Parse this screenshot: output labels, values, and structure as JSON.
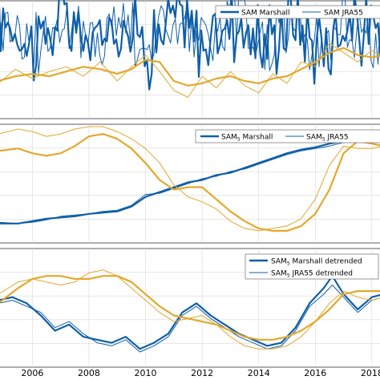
{
  "colors": {
    "blue": "#0f5fa8",
    "gold": "#e3a82d",
    "axis": "#333333",
    "grid": "#d9d9d9"
  },
  "chart_data": [
    {
      "type": "line",
      "grid": true,
      "legend_placement": "top-right",
      "x_range": [
        2004.8,
        2018.4
      ],
      "series": [
        {
          "name": "SAM Marshall",
          "color": "#0f5fa8",
          "style": "thick"
        },
        {
          "name": "SAM JRA55",
          "color": "#0f5fa8",
          "style": "thin"
        },
        {
          "color": "#e3a82d",
          "style": "thick",
          "x": [
            2004.8,
            2005.4,
            2006.0,
            2006.6,
            2007.2,
            2007.8,
            2008.4,
            2009.0,
            2009.5,
            2010.0,
            2010.5,
            2011.0,
            2011.5,
            2012.0,
            2012.5,
            2013.0,
            2013.5,
            2014.0,
            2014.5,
            2015.0,
            2015.5,
            2016.0,
            2016.5,
            2017.0,
            2017.5,
            2018.0,
            2018.4
          ],
          "y": [
            -0.8,
            -0.6,
            -0.5,
            -0.6,
            -0.4,
            -0.2,
            -0.3,
            -0.5,
            -0.3,
            0.1,
            0.0,
            -0.8,
            -1.0,
            -0.9,
            -0.7,
            -0.6,
            -0.8,
            -0.9,
            -0.7,
            -0.6,
            -0.3,
            0.0,
            0.4,
            0.6,
            0.3,
            0.2,
            0.3
          ]
        },
        {
          "color": "#e3a82d",
          "style": "thin",
          "x": [
            2004.8,
            2005.4,
            2006.0,
            2006.6,
            2007.2,
            2007.8,
            2008.4,
            2009.0,
            2009.5,
            2010.0,
            2010.5,
            2011.0,
            2011.5,
            2012.0,
            2012.5,
            2013.0,
            2013.5,
            2014.0,
            2014.5,
            2015.0,
            2015.5,
            2016.0,
            2016.5,
            2017.0,
            2017.5,
            2018.0,
            2018.4
          ],
          "y": [
            -0.9,
            -0.3,
            -0.7,
            -0.4,
            -0.2,
            -0.6,
            0.0,
            -0.8,
            -0.2,
            0.3,
            -0.4,
            -1.2,
            -1.5,
            -0.6,
            -1.1,
            -0.4,
            -1.0,
            -1.3,
            -0.5,
            -0.9,
            0.0,
            -0.2,
            0.8,
            0.4,
            0.0,
            0.5,
            0.2
          ]
        }
      ]
    },
    {
      "type": "line",
      "grid": true,
      "legend_placement": "top-right",
      "x_range": [
        2004.8,
        2018.4
      ],
      "series": [
        {
          "name": "SAM_5 Marshall",
          "color": "#0f5fa8",
          "style": "thick",
          "x": [
            2004.8,
            2005.5,
            2006.0,
            2006.5,
            2007.0,
            2007.5,
            2008.0,
            2008.5,
            2009.0,
            2009.5,
            2010.0,
            2010.5,
            2011.0,
            2011.5,
            2012.0,
            2012.5,
            2013.0,
            2013.5,
            2014.0,
            2014.5,
            2015.0,
            2015.5,
            2016.0,
            2016.5,
            2017.0,
            2017.5,
            2018.0,
            2018.4
          ],
          "y": [
            -2.2,
            -2.2,
            -2.1,
            -2.0,
            -1.95,
            -1.9,
            -1.8,
            -1.75,
            -1.7,
            -1.5,
            -1.1,
            -0.9,
            -0.7,
            -0.5,
            -0.4,
            -0.2,
            -0.1,
            0.1,
            0.3,
            0.5,
            0.7,
            0.85,
            0.95,
            1.1,
            1.2,
            1.25,
            1.3,
            1.35
          ]
        },
        {
          "name": "SAM_5 JRA55",
          "color": "#0f5fa8",
          "style": "thin",
          "x": [
            2004.8,
            2005.5,
            2006.0,
            2006.5,
            2007.0,
            2007.5,
            2008.0,
            2008.5,
            2009.0,
            2009.5,
            2010.0,
            2010.5,
            2011.0,
            2011.5,
            2012.0,
            2012.5,
            2013.0,
            2013.5,
            2014.0,
            2014.5,
            2015.0,
            2015.5,
            2016.0,
            2016.5,
            2017.0,
            2017.5,
            2018.0,
            2018.4
          ],
          "y": [
            -2.15,
            -2.2,
            -2.15,
            -2.05,
            -1.9,
            -1.85,
            -1.8,
            -1.7,
            -1.65,
            -1.45,
            -1.0,
            -0.95,
            -0.75,
            -0.55,
            -0.35,
            -0.25,
            -0.05,
            0.05,
            0.25,
            0.45,
            0.65,
            0.8,
            0.9,
            1.0,
            1.15,
            1.2,
            1.3,
            1.3
          ]
        },
        {
          "color": "#e3a82d",
          "style": "thick",
          "x": [
            2004.8,
            2005.5,
            2006.0,
            2006.5,
            2007.0,
            2007.5,
            2008.0,
            2008.5,
            2009.0,
            2009.5,
            2010.0,
            2010.5,
            2011.0,
            2011.5,
            2012.0,
            2012.5,
            2013.0,
            2013.5,
            2014.0,
            2014.5,
            2015.0,
            2015.5,
            2016.0,
            2016.5,
            2017.0,
            2017.5,
            2018.0,
            2018.4
          ],
          "y": [
            0.8,
            0.9,
            0.7,
            0.6,
            0.7,
            1.0,
            1.4,
            1.5,
            1.3,
            0.9,
            0.3,
            -0.4,
            -0.8,
            -0.7,
            -0.7,
            -1.2,
            -1.7,
            -2.1,
            -2.4,
            -2.5,
            -2.5,
            -2.3,
            -1.8,
            -0.8,
            0.7,
            1.2,
            1.1,
            1.0
          ]
        },
        {
          "color": "#e3a82d",
          "style": "thin",
          "x": [
            2004.8,
            2005.5,
            2006.0,
            2006.5,
            2007.0,
            2007.5,
            2008.0,
            2008.5,
            2009.0,
            2009.5,
            2010.0,
            2010.5,
            2011.0,
            2011.5,
            2012.0,
            2012.5,
            2013.0,
            2013.5,
            2014.0,
            2014.5,
            2015.0,
            2015.5,
            2016.0,
            2016.5,
            2017.0,
            2017.5,
            2018.0,
            2018.4
          ],
          "y": [
            1.5,
            1.7,
            1.6,
            1.4,
            1.5,
            1.7,
            1.8,
            1.8,
            1.6,
            1.3,
            0.9,
            0.3,
            -0.6,
            -1.1,
            -1.3,
            -1.6,
            -2.1,
            -2.4,
            -2.5,
            -2.4,
            -2.3,
            -2.0,
            -1.2,
            0.2,
            1.0,
            0.9,
            0.9,
            1.0
          ]
        }
      ]
    },
    {
      "type": "line",
      "grid": true,
      "legend_placement": "top-right",
      "x_range": [
        2004.8,
        2018.4
      ],
      "x_ticks": [
        "2006",
        "2008",
        "2010",
        "2012",
        "2014",
        "2016",
        "2018"
      ],
      "series": [
        {
          "name": "SAM_5 Marshall detrended",
          "color": "#0f5fa8",
          "style": "thick",
          "x": [
            2004.8,
            2005.3,
            2005.8,
            2006.3,
            2006.8,
            2007.3,
            2007.8,
            2008.3,
            2008.8,
            2009.3,
            2009.8,
            2010.3,
            2010.8,
            2011.3,
            2011.8,
            2012.3,
            2012.8,
            2013.3,
            2013.8,
            2014.3,
            2014.8,
            2015.3,
            2015.8,
            2016.3,
            2016.6,
            2017.0,
            2017.5,
            2018.0,
            2018.4
          ],
          "y": [
            0.2,
            0.3,
            0.1,
            -0.3,
            -0.8,
            -0.6,
            -1.0,
            -1.1,
            -1.2,
            -1.0,
            -1.4,
            -1.2,
            -0.9,
            -0.2,
            0.1,
            -0.3,
            -0.6,
            -0.9,
            -1.1,
            -1.3,
            -1.2,
            -0.7,
            0.1,
            0.6,
            1.0,
            0.4,
            -0.1,
            0.3,
            0.4
          ]
        },
        {
          "name": "SAM_5 JRA55 detrended",
          "color": "#0f5fa8",
          "style": "thin",
          "x": [
            2004.8,
            2005.3,
            2005.8,
            2006.3,
            2006.8,
            2007.3,
            2007.8,
            2008.3,
            2008.8,
            2009.3,
            2009.8,
            2010.3,
            2010.8,
            2011.3,
            2011.8,
            2012.3,
            2012.8,
            2013.3,
            2013.8,
            2014.3,
            2014.8,
            2015.3,
            2015.8,
            2016.3,
            2016.6,
            2017.0,
            2017.5,
            2018.0,
            2018.4
          ],
          "y": [
            0.1,
            0.2,
            0.0,
            -0.2,
            -0.7,
            -0.5,
            -0.9,
            -1.2,
            -1.3,
            -1.1,
            -1.5,
            -1.3,
            -1.0,
            -0.3,
            0.0,
            -0.4,
            -0.7,
            -1.0,
            -1.2,
            -1.4,
            -1.3,
            -0.8,
            0.0,
            0.4,
            0.7,
            0.3,
            -0.2,
            0.2,
            0.3
          ]
        },
        {
          "color": "#e3a82d",
          "style": "thick",
          "x": [
            2004.8,
            2005.5,
            2006.0,
            2006.5,
            2007.0,
            2007.5,
            2008.0,
            2008.5,
            2009.0,
            2009.5,
            2010.0,
            2010.5,
            2011.0,
            2011.5,
            2012.0,
            2012.5,
            2013.0,
            2013.5,
            2014.0,
            2014.5,
            2015.0,
            2015.5,
            2016.0,
            2016.5,
            2017.0,
            2017.5,
            2018.0,
            2018.4
          ],
          "y": [
            0.1,
            0.6,
            0.9,
            1.0,
            1.0,
            0.9,
            0.9,
            1.0,
            1.0,
            0.8,
            0.4,
            0.0,
            -0.3,
            -0.4,
            -0.5,
            -0.6,
            -0.8,
            -1.0,
            -1.1,
            -1.1,
            -1.0,
            -0.8,
            -0.5,
            -0.1,
            0.4,
            0.5,
            0.5,
            0.5
          ]
        },
        {
          "color": "#e3a82d",
          "style": "thin",
          "x": [
            2004.8,
            2005.5,
            2006.0,
            2006.5,
            2007.0,
            2007.5,
            2008.0,
            2008.5,
            2009.0,
            2009.5,
            2010.0,
            2010.5,
            2011.0,
            2011.5,
            2012.0,
            2012.5,
            2013.0,
            2013.5,
            2014.0,
            2014.5,
            2015.0,
            2015.5,
            2016.0,
            2016.5,
            2017.0,
            2017.5,
            2018.0,
            2018.4
          ],
          "y": [
            0.4,
            0.8,
            0.9,
            0.8,
            0.7,
            0.8,
            1.1,
            1.2,
            1.0,
            0.6,
            0.2,
            -0.2,
            -0.5,
            -0.4,
            -0.3,
            -0.6,
            -1.0,
            -1.3,
            -1.4,
            -1.4,
            -1.3,
            -1.0,
            -0.5,
            0.1,
            0.5,
            0.3,
            0.2,
            0.3
          ]
        }
      ]
    }
  ]
}
